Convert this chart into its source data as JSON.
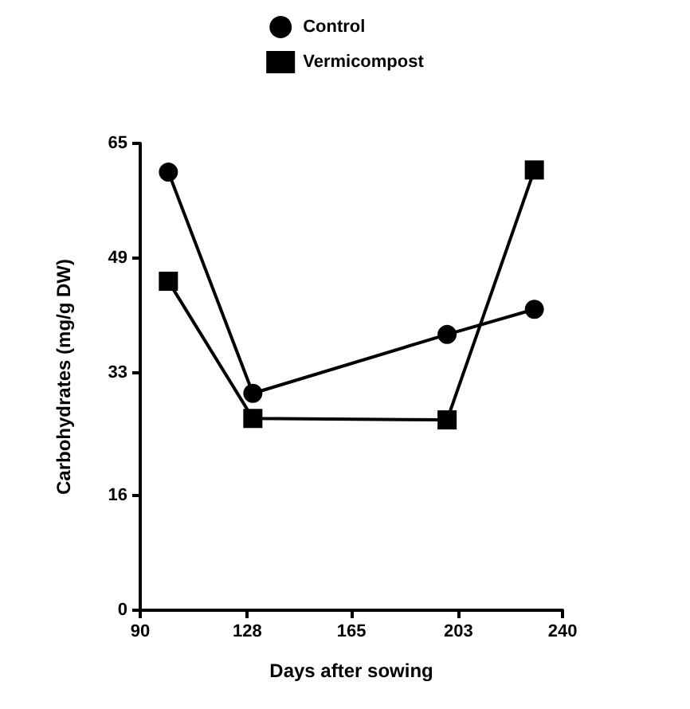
{
  "chart_data": {
    "type": "line",
    "xlabel": "Days after sowing",
    "ylabel": "Carbohydrates (mg/g DW)",
    "xlim": [
      90,
      240
    ],
    "xticks": [
      90,
      128,
      165,
      203,
      240
    ],
    "ylim": [
      0,
      65
    ],
    "yticks": [
      0,
      16,
      33,
      49,
      65
    ],
    "grid": false,
    "legend": "top",
    "line_style": "solid",
    "series": [
      {
        "name": "Control",
        "color": "#000000",
        "marker": "circle",
        "x": [
          100,
          130,
          199,
          230
        ],
        "values": [
          61,
          30.2,
          38.4,
          41.9
        ]
      },
      {
        "name": "Vermicompost",
        "color": "#000000",
        "marker": "square",
        "x": [
          100,
          130,
          199,
          230
        ],
        "values": [
          45.8,
          26.7,
          26.5,
          61.3
        ]
      }
    ]
  }
}
